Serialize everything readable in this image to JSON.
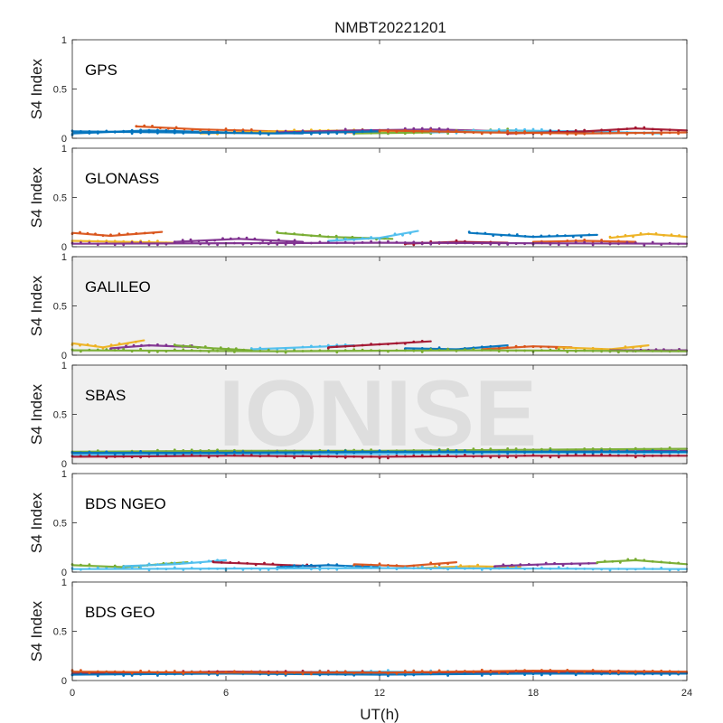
{
  "chart_data": {
    "type": "scatter",
    "title": "NMBT20221201",
    "xlabel": "UT(h)",
    "ylabel": "S4 Index",
    "xlim": [
      0,
      24
    ],
    "ylim": [
      0,
      1
    ],
    "xticks": [
      "0",
      "6",
      "12",
      "18",
      "24"
    ],
    "yticks": [
      "0",
      "0.5",
      "1"
    ],
    "watermark": "IONISE",
    "series_colors": [
      "#0072BD",
      "#D95319",
      "#EDB120",
      "#7E2F8E",
      "#77AC30",
      "#4DBEEE",
      "#A2142F"
    ],
    "panels": [
      {
        "name": "GPS",
        "bg": "#ffffff",
        "traces": [
          {
            "x": [
              0,
              3,
              6,
              9
            ],
            "y": [
              0.05,
              0.08,
              0.06,
              0.05
            ]
          },
          {
            "x": [
              2.5,
              5,
              8,
              11
            ],
            "y": [
              0.12,
              0.09,
              0.07,
              0.06
            ]
          },
          {
            "x": [
              5,
              8,
              11,
              14
            ],
            "y": [
              0.05,
              0.07,
              0.08,
              0.06
            ]
          },
          {
            "x": [
              8,
              11,
              14,
              17
            ],
            "y": [
              0.06,
              0.08,
              0.09,
              0.07
            ]
          },
          {
            "x": [
              11,
              14,
              17,
              20
            ],
            "y": [
              0.05,
              0.06,
              0.08,
              0.06
            ]
          },
          {
            "x": [
              14,
              17,
              20,
              23
            ],
            "y": [
              0.06,
              0.08,
              0.07,
              0.05
            ]
          },
          {
            "x": [
              17,
              20,
              22,
              24
            ],
            "y": [
              0.05,
              0.07,
              0.1,
              0.08
            ]
          },
          {
            "x": [
              0,
              4,
              8,
              12
            ],
            "y": [
              0.07,
              0.06,
              0.05,
              0.07
            ]
          },
          {
            "x": [
              12,
              16,
              20,
              24
            ],
            "y": [
              0.08,
              0.06,
              0.05,
              0.06
            ]
          }
        ]
      },
      {
        "name": "GLONASS",
        "bg": "#ffffff",
        "traces": [
          {
            "x": [
              0,
              1.5,
              3.5
            ],
            "y": [
              0.14,
              0.11,
              0.15
            ]
          },
          {
            "x": [
              0,
              2,
              4
            ],
            "y": [
              0.06,
              0.05,
              0.04
            ]
          },
          {
            "x": [
              4,
              6.5,
              9
            ],
            "y": [
              0.05,
              0.08,
              0.05
            ]
          },
          {
            "x": [
              8,
              10,
              12.5
            ],
            "y": [
              0.14,
              0.1,
              0.08
            ]
          },
          {
            "x": [
              10,
              12,
              13.5
            ],
            "y": [
              0.06,
              0.09,
              0.16
            ]
          },
          {
            "x": [
              13,
              15,
              17
            ],
            "y": [
              0.03,
              0.05,
              0.04
            ]
          },
          {
            "x": [
              15.5,
              18,
              20.5
            ],
            "y": [
              0.14,
              0.1,
              0.12
            ]
          },
          {
            "x": [
              18,
              20,
              22
            ],
            "y": [
              0.05,
              0.06,
              0.05
            ]
          },
          {
            "x": [
              21,
              22.5,
              24
            ],
            "y": [
              0.09,
              0.13,
              0.1
            ]
          },
          {
            "x": [
              0,
              12,
              24
            ],
            "y": [
              0.03,
              0.04,
              0.03
            ]
          }
        ]
      },
      {
        "name": "GALILEO",
        "bg": "#f0f0f0",
        "traces": [
          {
            "x": [
              0,
              1.2,
              2.8
            ],
            "y": [
              0.12,
              0.08,
              0.15
            ]
          },
          {
            "x": [
              1.5,
              3,
              5
            ],
            "y": [
              0.07,
              0.1,
              0.08
            ]
          },
          {
            "x": [
              4,
              5.5,
              7
            ],
            "y": [
              0.1,
              0.07,
              0.05
            ]
          },
          {
            "x": [
              7,
              9,
              11
            ],
            "y": [
              0.06,
              0.08,
              0.1
            ]
          },
          {
            "x": [
              10,
              12,
              14
            ],
            "y": [
              0.08,
              0.11,
              0.14
            ]
          },
          {
            "x": [
              13,
              15,
              17
            ],
            "y": [
              0.07,
              0.06,
              0.1
            ]
          },
          {
            "x": [
              16,
              18,
              19.5
            ],
            "y": [
              0.06,
              0.09,
              0.08
            ]
          },
          {
            "x": [
              19,
              21,
              22.5
            ],
            "y": [
              0.08,
              0.06,
              0.1
            ]
          },
          {
            "x": [
              21,
              22.5,
              24
            ],
            "y": [
              0.05,
              0.05,
              0.05
            ]
          },
          {
            "x": [
              0,
              8,
              16,
              24
            ],
            "y": [
              0.05,
              0.04,
              0.05,
              0.04
            ]
          }
        ]
      },
      {
        "name": "SBAS",
        "bg": "#f0f0f0",
        "traces": [
          {
            "x": [
              0,
              6,
              12,
              18,
              24
            ],
            "y": [
              0.1,
              0.12,
              0.11,
              0.12,
              0.13
            ]
          },
          {
            "x": [
              0,
              6,
              12,
              18,
              24
            ],
            "y": [
              0.12,
              0.13,
              0.13,
              0.14,
              0.15
            ]
          },
          {
            "x": [
              0,
              6,
              12,
              18,
              24
            ],
            "y": [
              0.09,
              0.1,
              0.1,
              0.11,
              0.11
            ]
          },
          {
            "x": [
              0,
              6,
              12,
              18,
              24
            ],
            "y": [
              0.07,
              0.08,
              0.07,
              0.08,
              0.08
            ]
          },
          {
            "x": [
              0,
              6,
              12,
              18,
              24
            ],
            "y": [
              0.11,
              0.11,
              0.12,
              0.12,
              0.12
            ]
          }
        ]
      },
      {
        "name": "BDS NGEO",
        "bg": "#ffffff",
        "traces": [
          {
            "x": [
              0,
              2,
              4.5
            ],
            "y": [
              0.07,
              0.05,
              0.1
            ]
          },
          {
            "x": [
              2,
              4,
              6
            ],
            "y": [
              0.06,
              0.08,
              0.12
            ]
          },
          {
            "x": [
              5.5,
              7.5,
              9.5
            ],
            "y": [
              0.1,
              0.08,
              0.06
            ]
          },
          {
            "x": [
              8,
              10,
              12
            ],
            "y": [
              0.05,
              0.07,
              0.05
            ]
          },
          {
            "x": [
              11,
              13,
              15
            ],
            "y": [
              0.08,
              0.06,
              0.1
            ]
          },
          {
            "x": [
              13.5,
              15.5,
              17.5
            ],
            "y": [
              0.04,
              0.06,
              0.05
            ]
          },
          {
            "x": [
              16.5,
              18.5,
              20.5
            ],
            "y": [
              0.06,
              0.08,
              0.09
            ]
          },
          {
            "x": [
              20.5,
              22,
              24
            ],
            "y": [
              0.1,
              0.12,
              0.08
            ]
          },
          {
            "x": [
              0,
              12,
              24
            ],
            "y": [
              0.03,
              0.04,
              0.03
            ]
          }
        ]
      },
      {
        "name": "BDS GEO",
        "bg": "#ffffff",
        "traces": [
          {
            "x": [
              0,
              6,
              12,
              18,
              24
            ],
            "y": [
              0.08,
              0.08,
              0.09,
              0.08,
              0.08
            ]
          },
          {
            "x": [
              0,
              6,
              12,
              18,
              24
            ],
            "y": [
              0.07,
              0.09,
              0.08,
              0.09,
              0.08
            ]
          },
          {
            "x": [
              0,
              6,
              12,
              18,
              24
            ],
            "y": [
              0.06,
              0.07,
              0.06,
              0.07,
              0.07
            ]
          },
          {
            "x": [
              0,
              6,
              12,
              18,
              24
            ],
            "y": [
              0.09,
              0.08,
              0.08,
              0.1,
              0.09
            ]
          }
        ]
      }
    ]
  }
}
